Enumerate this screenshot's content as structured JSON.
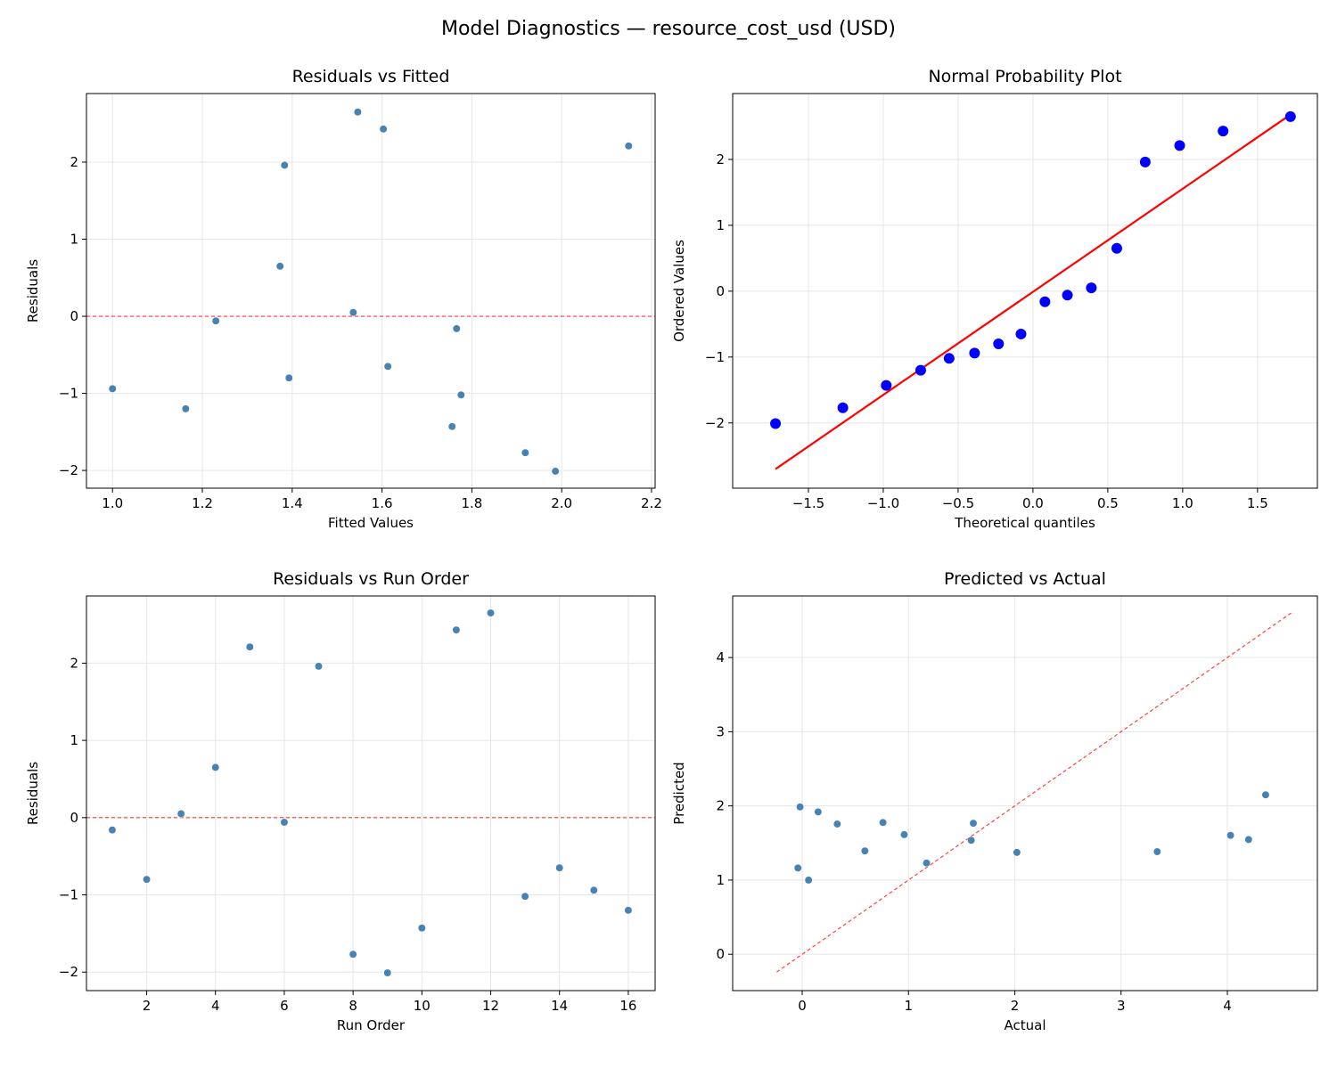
{
  "figure": {
    "title": "Model Diagnostics — resource_cost_usd (USD)"
  },
  "chart_data": [
    {
      "type": "scatter",
      "title": "Residuals vs Fitted",
      "xlabel": "Fitted Values",
      "ylabel": "Residuals",
      "xlim": [
        0.942,
        2.208
      ],
      "ylim": [
        -2.23,
        2.89
      ],
      "xticks": [
        1.0,
        1.2,
        1.4,
        1.6,
        1.8,
        2.0,
        2.2
      ],
      "xtick_labels": [
        "1.0",
        "1.2",
        "1.4",
        "1.6",
        "1.8",
        "2.0",
        "2.2"
      ],
      "yticks": [
        -2,
        -1,
        0,
        1,
        2
      ],
      "ytick_labels": [
        "−2",
        "−1",
        "0",
        "1",
        "2"
      ],
      "grid": true,
      "point_color": "#4682b4",
      "x": [
        1.766,
        1.393,
        1.536,
        1.373,
        2.149,
        1.23,
        1.383,
        1.919,
        1.986,
        1.756,
        1.603,
        1.546,
        1.776,
        1.613,
        1.0,
        1.163
      ],
      "y": [
        -0.16,
        -0.8,
        0.05,
        0.65,
        2.21,
        -0.06,
        1.96,
        -1.77,
        -2.01,
        -1.43,
        2.43,
        2.65,
        -1.02,
        -0.65,
        -0.94,
        -1.2
      ],
      "reference_line": {
        "type": "horizontal",
        "y": 0,
        "color": "#ff0000",
        "style": "dashed"
      }
    },
    {
      "type": "scatter",
      "title": "Normal Probability Plot",
      "xlabel": "Theoretical quantiles",
      "ylabel": "Ordered Values",
      "xlim": [
        -2.006,
        1.9
      ],
      "ylim": [
        -2.99,
        3.0
      ],
      "xticks": [
        -1.5,
        -1.0,
        -0.5,
        0.0,
        0.5,
        1.0,
        1.5
      ],
      "xtick_labels": [
        "−1.5",
        "−1.0",
        "−0.5",
        "0.0",
        "0.5",
        "1.0",
        "1.5"
      ],
      "yticks": [
        -2,
        -1,
        0,
        1,
        2
      ],
      "ytick_labels": [
        "−2",
        "−1",
        "0",
        "1",
        "2"
      ],
      "grid": true,
      "point_color": "#0000ff",
      "x": [
        -1.72,
        -1.27,
        -0.98,
        -0.75,
        -0.56,
        -0.39,
        -0.23,
        -0.08,
        0.08,
        0.23,
        0.39,
        0.56,
        0.75,
        0.98,
        1.27,
        1.72
      ],
      "y": [
        -2.01,
        -1.77,
        -1.43,
        -1.2,
        -1.02,
        -0.94,
        -0.8,
        -0.65,
        -0.16,
        -0.06,
        0.05,
        0.65,
        1.96,
        2.21,
        2.43,
        2.65
      ],
      "reference_line": {
        "type": "segment",
        "x": [
          -1.72,
          1.72
        ],
        "y": [
          -2.7,
          2.68
        ],
        "color": "#ff0000",
        "style": "solid"
      }
    },
    {
      "type": "scatter",
      "title": "Residuals vs Run Order",
      "xlabel": "Run Order",
      "ylabel": "Residuals",
      "xlim": [
        0.25,
        16.78
      ],
      "ylim": [
        -2.24,
        2.87
      ],
      "xticks": [
        2,
        4,
        6,
        8,
        10,
        12,
        14,
        16
      ],
      "xtick_labels": [
        "2",
        "4",
        "6",
        "8",
        "10",
        "12",
        "14",
        "16"
      ],
      "yticks": [
        -2,
        -1,
        0,
        1,
        2
      ],
      "ytick_labels": [
        "−2",
        "−1",
        "0",
        "1",
        "2"
      ],
      "grid": true,
      "point_color": "#4682b4",
      "x": [
        1,
        2,
        3,
        4,
        5,
        6,
        7,
        8,
        9,
        10,
        11,
        12,
        13,
        14,
        15,
        16
      ],
      "y": [
        -0.16,
        -0.8,
        0.05,
        0.65,
        2.21,
        -0.06,
        1.96,
        -1.77,
        -2.01,
        -1.43,
        2.43,
        2.65,
        -1.02,
        -0.65,
        -0.94,
        -1.2
      ],
      "reference_line": {
        "type": "horizontal",
        "y": 0,
        "color": "#ff0000",
        "style": "dashed"
      }
    },
    {
      "type": "scatter",
      "title": "Predicted vs Actual",
      "xlabel": "Actual",
      "ylabel": "Predicted",
      "xlim": [
        -0.654,
        4.847
      ],
      "ylim": [
        -0.49,
        4.83
      ],
      "xticks": [
        0,
        1,
        2,
        3,
        4
      ],
      "xtick_labels": [
        "0",
        "1",
        "2",
        "3",
        "4"
      ],
      "yticks": [
        0,
        1,
        2,
        3,
        4
      ],
      "ytick_labels": [
        "0",
        "1",
        "2",
        "3",
        "4"
      ],
      "grid": true,
      "point_color": "#4682b4",
      "x": [
        1.61,
        0.59,
        1.59,
        2.02,
        4.36,
        1.17,
        3.34,
        0.15,
        -0.02,
        0.33,
        4.03,
        4.2,
        0.76,
        0.96,
        0.06,
        -0.04
      ],
      "y": [
        1.766,
        1.393,
        1.536,
        1.373,
        2.149,
        1.23,
        1.383,
        1.919,
        1.986,
        1.756,
        1.603,
        1.546,
        1.776,
        1.613,
        1.0,
        1.163
      ],
      "reference_line": {
        "type": "segment",
        "x": [
          -0.24,
          4.6
        ],
        "y": [
          -0.24,
          4.6
        ],
        "color": "#ff0000",
        "style": "dashed"
      }
    }
  ]
}
